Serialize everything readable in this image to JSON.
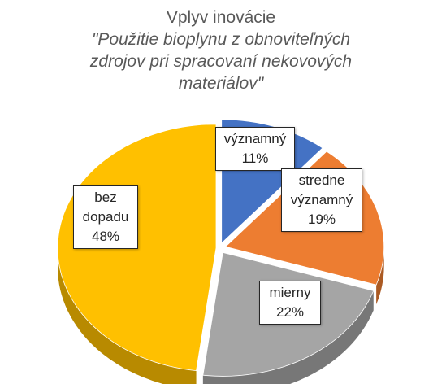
{
  "title": {
    "line1": "Vplyv inovácie",
    "line2": "\"Použitie bioplynu z obnoviteľných zdrojov pri spracovaní nekovových materiálov\""
  },
  "colors": {
    "blue": "#4472C4",
    "orange": "#ED7D31",
    "gray": "#A5A5A5",
    "yellow": "#FFC000"
  },
  "chart_data": {
    "type": "pie",
    "title": "Vplyv inovácie \"Použitie bioplynu z obnoviteľných zdrojov pri spracovaní nekovových materiálov\"",
    "categories": [
      "významný",
      "stredne významný",
      "mierny",
      "bez dopadu"
    ],
    "values": [
      11,
      19,
      22,
      48
    ],
    "labels": [
      {
        "name": "významný",
        "value": "11%"
      },
      {
        "name": "stredne významný",
        "value": "19%"
      },
      {
        "name": "mierny",
        "value": "22%"
      },
      {
        "name": "bez dopadu",
        "value": "48%"
      }
    ],
    "style": "3d-exploded"
  }
}
